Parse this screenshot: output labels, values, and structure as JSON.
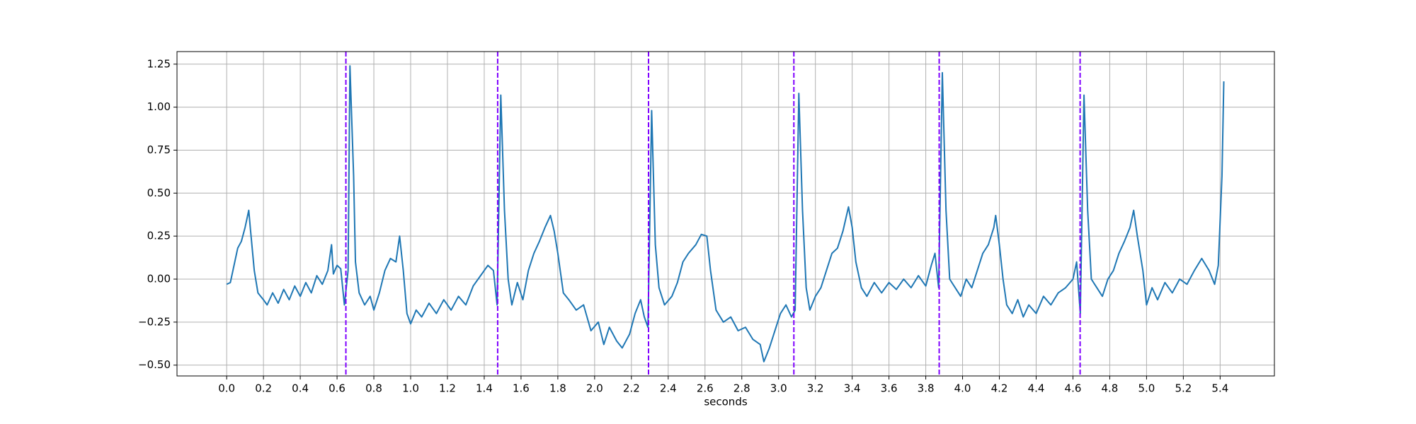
{
  "chart_data": {
    "type": "line",
    "xlabel": "seconds",
    "x": [
      0.0,
      0.02,
      0.04,
      0.06,
      0.08,
      0.1,
      0.12,
      0.13,
      0.15,
      0.17,
      0.2,
      0.22,
      0.25,
      0.28,
      0.31,
      0.34,
      0.37,
      0.4,
      0.43,
      0.46,
      0.49,
      0.52,
      0.55,
      0.57,
      0.58,
      0.6,
      0.62,
      0.64,
      0.66,
      0.67,
      0.69,
      0.7,
      0.72,
      0.75,
      0.78,
      0.8,
      0.83,
      0.86,
      0.89,
      0.92,
      0.94,
      0.96,
      0.98,
      1.0,
      1.03,
      1.06,
      1.1,
      1.14,
      1.18,
      1.22,
      1.26,
      1.3,
      1.34,
      1.38,
      1.42,
      1.45,
      1.47,
      1.49,
      1.51,
      1.53,
      1.55,
      1.58,
      1.61,
      1.64,
      1.67,
      1.7,
      1.73,
      1.76,
      1.78,
      1.8,
      1.83,
      1.86,
      1.9,
      1.94,
      1.98,
      2.02,
      2.05,
      2.08,
      2.12,
      2.15,
      2.19,
      2.22,
      2.25,
      2.27,
      2.29,
      2.31,
      2.33,
      2.35,
      2.38,
      2.42,
      2.45,
      2.48,
      2.51,
      2.55,
      2.58,
      2.61,
      2.63,
      2.66,
      2.7,
      2.74,
      2.78,
      2.82,
      2.86,
      2.9,
      2.92,
      2.95,
      2.98,
      3.01,
      3.04,
      3.07,
      3.09,
      3.11,
      3.13,
      3.15,
      3.17,
      3.2,
      3.23,
      3.26,
      3.29,
      3.32,
      3.35,
      3.38,
      3.4,
      3.42,
      3.45,
      3.48,
      3.52,
      3.56,
      3.6,
      3.64,
      3.68,
      3.72,
      3.76,
      3.8,
      3.83,
      3.85,
      3.87,
      3.89,
      3.91,
      3.93,
      3.96,
      3.99,
      4.02,
      4.05,
      4.08,
      4.11,
      4.14,
      4.17,
      4.18,
      4.2,
      4.22,
      4.24,
      4.27,
      4.3,
      4.33,
      4.36,
      4.4,
      4.44,
      4.48,
      4.52,
      4.56,
      4.6,
      4.62,
      4.64,
      4.66,
      4.68,
      4.7,
      4.73,
      4.76,
      4.79,
      4.82,
      4.85,
      4.88,
      4.91,
      4.93,
      4.95,
      4.98,
      5.0,
      5.03,
      5.06,
      5.1,
      5.14,
      5.18,
      5.22,
      5.26,
      5.3,
      5.34,
      5.37,
      5.39,
      5.41,
      5.42
    ],
    "values": [
      -0.03,
      -0.02,
      0.08,
      0.18,
      0.22,
      0.3,
      0.4,
      0.28,
      0.05,
      -0.08,
      -0.12,
      -0.15,
      -0.08,
      -0.14,
      -0.06,
      -0.12,
      -0.04,
      -0.1,
      -0.02,
      -0.08,
      0.02,
      -0.03,
      0.05,
      0.2,
      0.03,
      0.08,
      0.06,
      -0.15,
      0.05,
      1.24,
      0.6,
      0.1,
      -0.08,
      -0.15,
      -0.1,
      -0.18,
      -0.08,
      0.05,
      0.12,
      0.1,
      0.25,
      0.05,
      -0.2,
      -0.26,
      -0.18,
      -0.22,
      -0.14,
      -0.2,
      -0.12,
      -0.18,
      -0.1,
      -0.15,
      -0.04,
      0.02,
      0.08,
      0.05,
      -0.15,
      1.07,
      0.4,
      0.0,
      -0.15,
      -0.02,
      -0.12,
      0.05,
      0.15,
      0.22,
      0.3,
      0.37,
      0.28,
      0.15,
      -0.08,
      -0.12,
      -0.18,
      -0.15,
      -0.3,
      -0.25,
      -0.38,
      -0.28,
      -0.36,
      -0.4,
      -0.32,
      -0.2,
      -0.12,
      -0.22,
      -0.28,
      0.98,
      0.2,
      -0.05,
      -0.15,
      -0.1,
      -0.02,
      0.1,
      0.15,
      0.2,
      0.26,
      0.25,
      0.05,
      -0.18,
      -0.25,
      -0.22,
      -0.3,
      -0.28,
      -0.35,
      -0.38,
      -0.48,
      -0.4,
      -0.3,
      -0.2,
      -0.15,
      -0.22,
      -0.18,
      1.08,
      0.4,
      -0.05,
      -0.18,
      -0.1,
      -0.05,
      0.05,
      0.15,
      0.18,
      0.28,
      0.42,
      0.3,
      0.1,
      -0.05,
      -0.1,
      -0.02,
      -0.08,
      -0.02,
      -0.06,
      0.0,
      -0.05,
      0.02,
      -0.04,
      0.08,
      0.15,
      -0.05,
      1.2,
      0.4,
      0.0,
      -0.05,
      -0.1,
      0.0,
      -0.05,
      0.05,
      0.15,
      0.2,
      0.3,
      0.37,
      0.2,
      0.0,
      -0.15,
      -0.2,
      -0.12,
      -0.22,
      -0.15,
      -0.2,
      -0.1,
      -0.15,
      -0.08,
      -0.05,
      0.0,
      0.1,
      -0.2,
      1.07,
      0.4,
      0.0,
      -0.05,
      -0.1,
      0.0,
      0.05,
      0.15,
      0.22,
      0.3,
      0.4,
      0.25,
      0.05,
      -0.15,
      -0.05,
      -0.12,
      -0.02,
      -0.08,
      0.0,
      -0.03,
      0.05,
      0.12,
      0.05,
      -0.03,
      0.08,
      0.6,
      1.15
    ],
    "color": "#1f77b4",
    "vlines": [
      0.648,
      1.473,
      2.293,
      3.083,
      3.873,
      4.639
    ],
    "vline_color": "#7f00ff",
    "xlim": [
      -0.27,
      5.695
    ],
    "ylim": [
      -0.563,
      1.323
    ],
    "xticks": [
      {
        "value": 0,
        "label": "0.0"
      },
      0.2,
      0.4,
      0.6,
      0.8,
      {
        "value": 1,
        "label": "1.0"
      },
      1.2,
      1.4,
      1.6,
      1.8,
      {
        "value": 2,
        "label": "2.0"
      },
      2.2,
      2.4,
      2.6,
      2.8,
      {
        "value": 3,
        "label": "3.0"
      },
      3.2,
      3.4,
      3.6,
      3.8,
      {
        "value": 4,
        "label": "4.0"
      },
      4.2,
      4.4,
      4.6,
      4.8,
      {
        "value": 5,
        "label": "5.0"
      },
      5.2,
      5.4
    ],
    "yticks": [
      {
        "value": -0.5,
        "label": "−0.50"
      },
      {
        "value": -0.25,
        "label": "−0.25"
      },
      {
        "value": 0,
        "label": "0.00"
      },
      0.25,
      {
        "value": 0.5,
        "label": "0.50"
      },
      0.75,
      {
        "value": 1,
        "label": "1.00"
      },
      1.25
    ],
    "grid": true
  }
}
